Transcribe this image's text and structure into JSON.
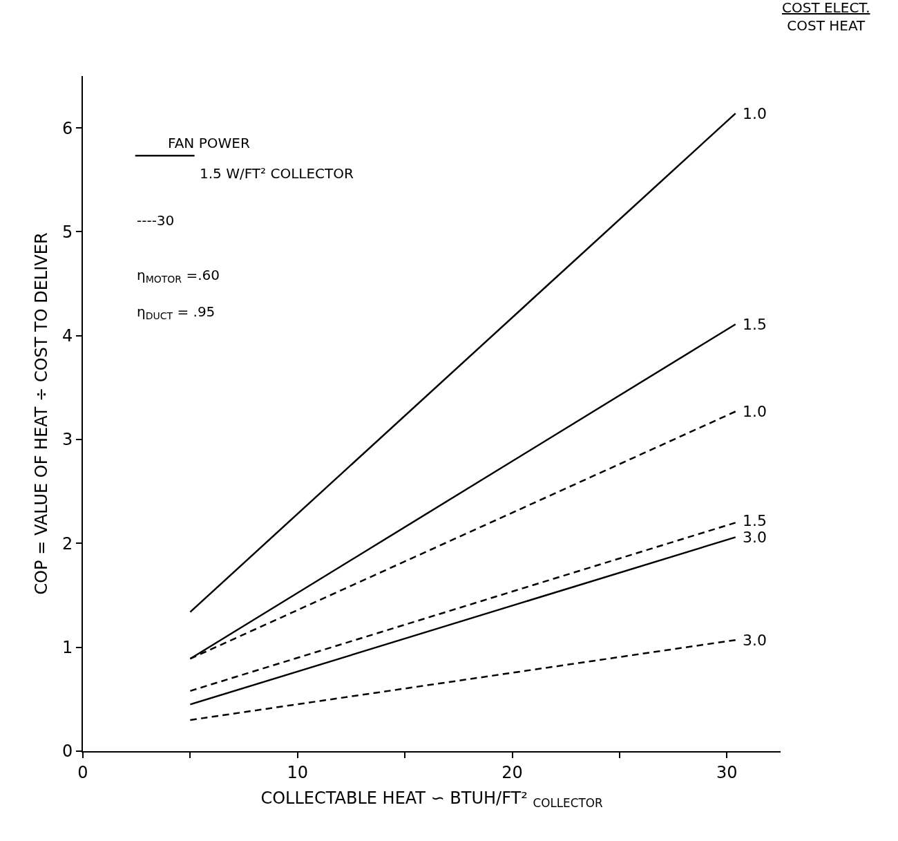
{
  "chart_data": {
    "type": "line",
    "xlabel": "COLLECTABLE HEAT ∽ BTUH/FT² $_{COLLECTOR}$",
    "ylabel": "COP = VALUE OF HEAT ÷ COST TO DELIVER",
    "legend_title": "COST ELECT.\nCOST HEAT",
    "x": [
      5,
      30.4
    ],
    "series": [
      {
        "name": "1.0",
        "color": "#000000",
        "line_style": "solid",
        "values": [
          1.34,
          6.14
        ]
      },
      {
        "name": "1.5",
        "color": "#000000",
        "line_style": "solid",
        "values": [
          0.89,
          4.11
        ]
      },
      {
        "name": "1.0",
        "color": "#000000",
        "line_style": "dashed",
        "values": [
          0.89,
          3.27
        ]
      },
      {
        "name": "1.5",
        "color": "#000000",
        "line_style": "dashed",
        "values": [
          0.58,
          2.2
        ]
      },
      {
        "name": "3.0",
        "color": "#000000",
        "line_style": "solid",
        "values": [
          0.45,
          2.06
        ]
      },
      {
        "name": "3.0",
        "color": "#000000",
        "line_style": "dashed",
        "values": [
          0.3,
          1.07
        ]
      }
    ],
    "annotations": [
      "FAN POWER",
      "1.5 W/FT² COLLECTOR",
      "----30",
      "η$_{MOTOR}$ =.60",
      "η$_{DUCT}$ = .95"
    ],
    "xlim": [
      0,
      32.5
    ],
    "ylim": [
      0,
      6.5
    ],
    "xticks": [
      0,
      {
        "value": 5,
        "label": null
      },
      10,
      {
        "value": 15,
        "label": null
      },
      20,
      {
        "value": 25,
        "label": null
      },
      30
    ],
    "yticks": [
      0,
      1,
      2,
      3,
      4,
      5,
      6
    ],
    "legend": false,
    "marker": "none"
  }
}
